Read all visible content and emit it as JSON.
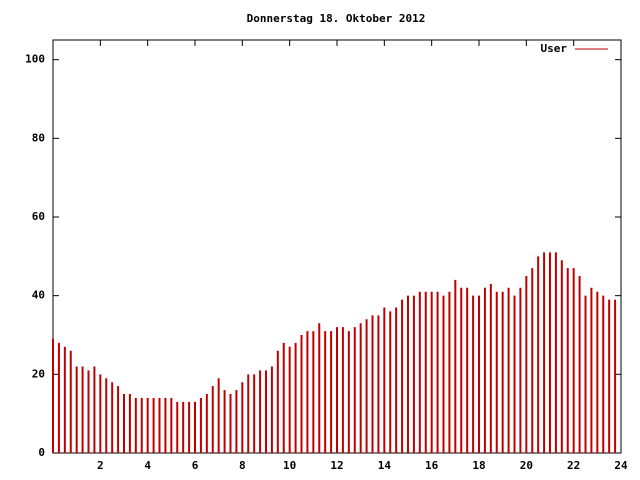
{
  "chart_data": {
    "type": "impulses",
    "title": "Donnerstag 18. Oktober 2012",
    "x": [
      0,
      0.25,
      0.5,
      0.75,
      1,
      1.25,
      1.5,
      1.75,
      2,
      2.25,
      2.5,
      2.75,
      3,
      3.25,
      3.5,
      3.75,
      4,
      4.25,
      4.5,
      4.75,
      5,
      5.25,
      5.5,
      5.75,
      6,
      6.25,
      6.5,
      6.75,
      7,
      7.25,
      7.5,
      7.75,
      8,
      8.25,
      8.5,
      8.75,
      9,
      9.25,
      9.5,
      9.75,
      10,
      10.25,
      10.5,
      10.75,
      11,
      11.25,
      11.5,
      11.75,
      12,
      12.25,
      12.5,
      12.75,
      13,
      13.25,
      13.5,
      13.75,
      14,
      14.25,
      14.5,
      14.75,
      15,
      15.25,
      15.5,
      15.75,
      16,
      16.25,
      16.5,
      16.75,
      17,
      17.25,
      17.5,
      17.75,
      18,
      18.25,
      18.5,
      18.75,
      19,
      19.25,
      19.5,
      19.75,
      20,
      20.25,
      20.5,
      20.75,
      21,
      21.25,
      21.5,
      21.75,
      22,
      22.25,
      22.5,
      22.75,
      23,
      23.25,
      23.5,
      23.75
    ],
    "series": [
      {
        "name": "User",
        "color": "#c00000",
        "values": [
          29,
          28,
          27,
          26,
          22,
          22,
          21,
          22,
          20,
          19,
          18,
          17,
          15,
          15,
          14,
          14,
          14,
          14,
          14,
          14,
          14,
          13,
          13,
          13,
          13,
          14,
          15,
          17,
          19,
          16,
          15,
          16,
          18,
          20,
          20,
          21,
          21,
          22,
          26,
          28,
          27,
          28,
          30,
          31,
          31,
          33,
          31,
          31,
          32,
          32,
          31,
          32,
          33,
          34,
          35,
          35,
          37,
          36,
          37,
          39,
          40,
          40,
          41,
          41,
          41,
          41,
          40,
          41,
          44,
          42,
          42,
          40,
          40,
          42,
          43,
          41,
          41,
          42,
          40,
          42,
          45,
          47,
          50,
          51,
          51,
          51,
          49,
          47,
          47,
          45,
          40,
          42,
          41,
          40,
          39,
          39
        ]
      }
    ],
    "xlim": [
      0,
      24
    ],
    "xticks": [
      2,
      4,
      6,
      8,
      10,
      12,
      14,
      16,
      18,
      20,
      22,
      24
    ],
    "ylim": [
      0,
      105
    ],
    "yticks": [
      0,
      20,
      40,
      60,
      80,
      100
    ],
    "legend": "top-right"
  }
}
